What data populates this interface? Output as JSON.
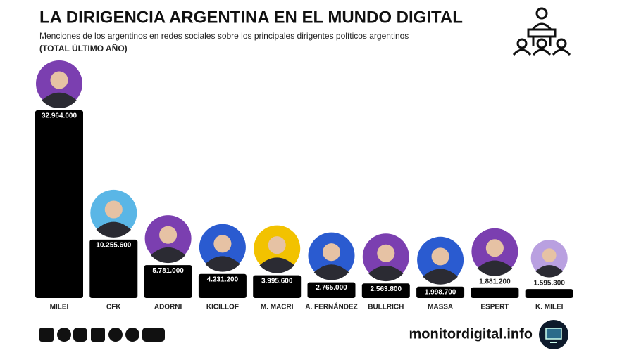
{
  "chart_data": {
    "type": "bar",
    "title": "LA DIRIGENCIA ARGENTINA EN EL MUNDO DIGITAL",
    "subtitle": "Menciones de los argentinos en redes sociales sobre los principales dirigentes políticos argentinos",
    "note": "(TOTAL ÚLTIMO AÑO)",
    "categories": [
      "MILEI",
      "CFK",
      "ADORNI",
      "KICILLOF",
      "M. MACRI",
      "A. FERNÁNDEZ",
      "BULLRICH",
      "MASSA",
      "ESPERT",
      "K. MILEI"
    ],
    "values": [
      32964000,
      10255600,
      5781000,
      4231200,
      3995600,
      2765000,
      2563800,
      1998700,
      1881200,
      1595300
    ],
    "value_labels": [
      "32.964.000",
      "10.255.600",
      "5.781.000",
      "4.231.200",
      "3.995.600",
      "2.765.000",
      "2.563.800",
      "1.998.700",
      "1.881.200",
      "1.595.300"
    ],
    "color": "#000000",
    "source": "monitordigital.info"
  }
}
